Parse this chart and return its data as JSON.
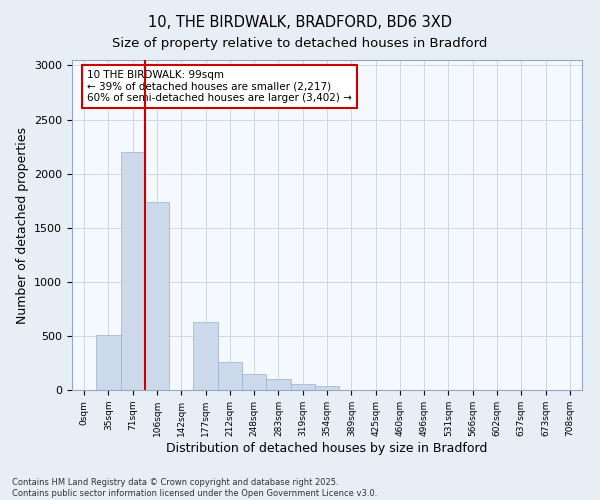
{
  "title1": "10, THE BIRDWALK, BRADFORD, BD6 3XD",
  "title2": "Size of property relative to detached houses in Bradford",
  "xlabel": "Distribution of detached houses by size in Bradford",
  "ylabel": "Number of detached properties",
  "bar_values": [
    0,
    510,
    2200,
    1740,
    0,
    630,
    260,
    150,
    100,
    60,
    40,
    0,
    0,
    0,
    0,
    0,
    0,
    0,
    0,
    0
  ],
  "categories": [
    "0sqm",
    "35sqm",
    "71sqm",
    "106sqm",
    "142sqm",
    "177sqm",
    "212sqm",
    "248sqm",
    "283sqm",
    "319sqm",
    "354sqm",
    "389sqm",
    "425sqm",
    "460sqm",
    "496sqm",
    "531sqm",
    "566sqm",
    "602sqm",
    "637sqm",
    "673sqm",
    "708sqm"
  ],
  "bar_color": "#ccd9ea",
  "bar_edge_color": "#9ab0cc",
  "vline_color": "#cc0000",
  "annotation_text": "10 THE BIRDWALK: 99sqm\n← 39% of detached houses are smaller (2,217)\n60% of semi-detached houses are larger (3,402) →",
  "annotation_fontsize": 7.5,
  "box_edge_color": "#cc0000",
  "ylim": [
    0,
    3050
  ],
  "yticks": [
    0,
    500,
    1000,
    1500,
    2000,
    2500,
    3000
  ],
  "title_fontsize": 10.5,
  "subtitle_fontsize": 9.5,
  "footer_text": "Contains HM Land Registry data © Crown copyright and database right 2025.\nContains public sector information licensed under the Open Government Licence v3.0.",
  "background_color": "#e8eef5",
  "plot_background": "#f5f8fc",
  "grid_color": "#c8d4e0"
}
